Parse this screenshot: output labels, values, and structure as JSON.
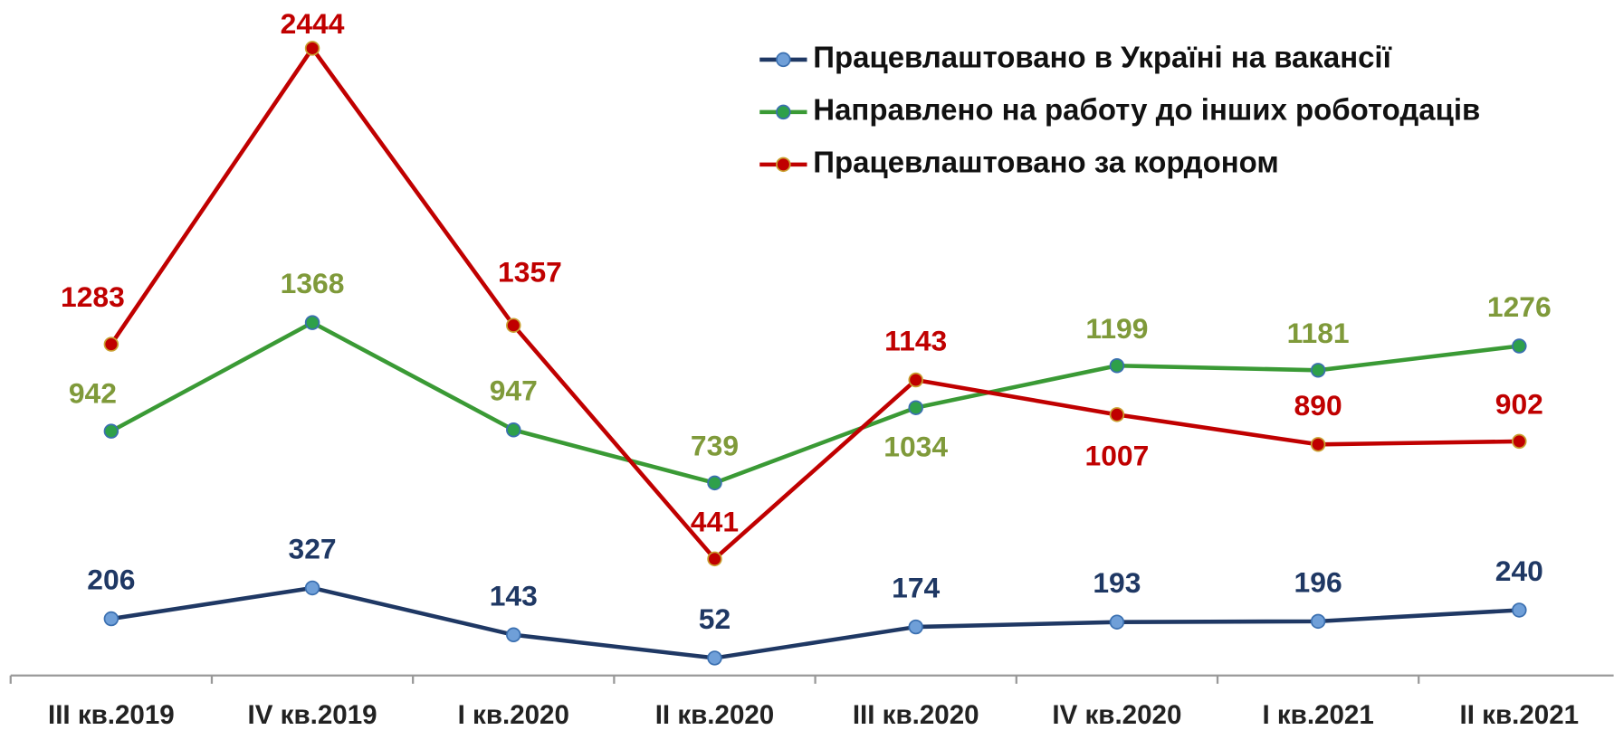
{
  "chart_data": {
    "type": "line",
    "categories": [
      "III кв.2019",
      "IV кв.2019",
      "I кв.2020",
      "II кв.2020",
      "III кв.2020",
      "IV кв.2020",
      "I кв.2021",
      "II кв.2021"
    ],
    "series": [
      {
        "name": "Працевлаштовано в Україні на вакансії",
        "color": "#1f3864",
        "marker_color": "#6f9fd8",
        "label_color": "#1f3864",
        "values": [
          206,
          327,
          143,
          52,
          174,
          193,
          196,
          240
        ]
      },
      {
        "name": "Направлено на работу до інших роботодаців",
        "color": "#3a9a35",
        "marker_color": "#2ea04a",
        "label_color": "#7f9a3a",
        "values": [
          942,
          1368,
          947,
          739,
          1034,
          1199,
          1181,
          1276
        ]
      },
      {
        "name": "Працевлаштовано за кордоном",
        "color": "#c00000",
        "marker_color": "#c00000",
        "label_color": "#c00000",
        "values": [
          1283,
          2444,
          1357,
          441,
          1143,
          1007,
          890,
          902
        ]
      }
    ],
    "legend": "top-right"
  }
}
